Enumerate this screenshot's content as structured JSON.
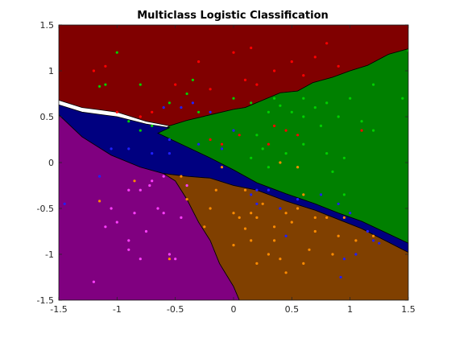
{
  "chart_data": {
    "type": "scatter",
    "title": "Multiclass Logistic Classification",
    "xlabel": "",
    "ylabel": "",
    "xlim": [
      -1.5,
      1.5
    ],
    "ylim": [
      -1.5,
      1.5
    ],
    "xticks": [
      -1.5,
      -1,
      -0.5,
      0,
      0.5,
      1,
      1.5
    ],
    "xtick_labels": [
      "-1.5",
      "-1",
      "-0.5",
      "0",
      "0.5",
      "1",
      "1.5"
    ],
    "yticks": [
      -1.5,
      -1,
      -0.5,
      0,
      0.5,
      1,
      1.5
    ],
    "ytick_labels": [
      "-1.5",
      "-1",
      "-0.5",
      "0",
      "0.5",
      "1",
      "1.5"
    ],
    "grid": false,
    "regions": [
      {
        "color": "#800000",
        "edge": "#000000",
        "polygon": [
          [
            -1.5,
            1.5
          ],
          [
            1.5,
            1.5
          ],
          [
            1.5,
            1.24
          ],
          [
            1.33,
            1.18
          ],
          [
            1.15,
            1.06
          ],
          [
            1.0,
            1.0
          ],
          [
            0.85,
            0.93
          ],
          [
            0.68,
            0.87
          ],
          [
            0.55,
            0.78
          ],
          [
            0.4,
            0.76
          ],
          [
            0.25,
            0.68
          ],
          [
            0.1,
            0.6
          ],
          [
            0.0,
            0.58
          ],
          [
            -0.2,
            0.52
          ],
          [
            -0.4,
            0.46
          ],
          [
            -0.55,
            0.4
          ],
          [
            -0.75,
            0.45
          ],
          [
            -1.0,
            0.55
          ],
          [
            -1.3,
            0.6
          ],
          [
            -1.5,
            0.68
          ]
        ]
      },
      {
        "color": "#008000",
        "edge": "#000000",
        "polygon": [
          [
            1.5,
            1.24
          ],
          [
            1.33,
            1.18
          ],
          [
            1.15,
            1.06
          ],
          [
            1.0,
            1.0
          ],
          [
            0.85,
            0.93
          ],
          [
            0.68,
            0.87
          ],
          [
            0.55,
            0.78
          ],
          [
            0.4,
            0.76
          ],
          [
            0.25,
            0.68
          ],
          [
            0.1,
            0.6
          ],
          [
            0.0,
            0.58
          ],
          [
            -0.2,
            0.52
          ],
          [
            -0.4,
            0.46
          ],
          [
            -0.55,
            0.4
          ],
          [
            -0.65,
            0.32
          ],
          [
            -0.45,
            0.2
          ],
          [
            -0.2,
            0.05
          ],
          [
            0.0,
            -0.08
          ],
          [
            0.2,
            -0.22
          ],
          [
            0.45,
            -0.34
          ],
          [
            0.7,
            -0.45
          ],
          [
            0.9,
            -0.55
          ],
          [
            1.1,
            -0.64
          ],
          [
            1.3,
            -0.76
          ],
          [
            1.5,
            -0.88
          ]
        ]
      },
      {
        "color": "#000080",
        "edge": "#000000",
        "polygon": [
          [
            -1.5,
            0.63
          ],
          [
            -1.3,
            0.55
          ],
          [
            -1.0,
            0.5
          ],
          [
            -0.75,
            0.42
          ],
          [
            -0.55,
            0.38
          ],
          [
            -0.65,
            0.32
          ],
          [
            -0.45,
            0.2
          ],
          [
            -0.2,
            0.05
          ],
          [
            0.0,
            -0.08
          ],
          [
            0.2,
            -0.22
          ],
          [
            0.45,
            -0.34
          ],
          [
            0.7,
            -0.45
          ],
          [
            0.9,
            -0.55
          ],
          [
            1.1,
            -0.64
          ],
          [
            1.3,
            -0.76
          ],
          [
            1.5,
            -0.88
          ],
          [
            1.5,
            -0.98
          ],
          [
            1.3,
            -0.85
          ],
          [
            1.1,
            -0.72
          ],
          [
            0.9,
            -0.62
          ],
          [
            0.7,
            -0.52
          ],
          [
            0.45,
            -0.42
          ],
          [
            0.2,
            -0.3
          ],
          [
            0.0,
            -0.25
          ],
          [
            -0.2,
            -0.17
          ],
          [
            -0.4,
            -0.15
          ],
          [
            -0.6,
            -0.12
          ],
          [
            -0.8,
            -0.05
          ],
          [
            -1.05,
            0.08
          ],
          [
            -1.3,
            0.28
          ],
          [
            -1.5,
            0.52
          ]
        ]
      },
      {
        "color": "#800080",
        "edge": "#000000",
        "polygon": [
          [
            -1.5,
            0.52
          ],
          [
            -1.3,
            0.28
          ],
          [
            -1.05,
            0.08
          ],
          [
            -0.8,
            -0.05
          ],
          [
            -0.6,
            -0.12
          ],
          [
            -0.5,
            -0.2
          ],
          [
            -0.4,
            -0.4
          ],
          [
            -0.3,
            -0.65
          ],
          [
            -0.2,
            -0.85
          ],
          [
            -0.12,
            -1.1
          ],
          [
            0.0,
            -1.35
          ],
          [
            0.05,
            -1.5
          ],
          [
            -1.5,
            -1.5
          ]
        ]
      },
      {
        "color": "#804000",
        "edge": "#000000",
        "polygon": [
          [
            -0.6,
            -0.12
          ],
          [
            -0.4,
            -0.15
          ],
          [
            -0.2,
            -0.17
          ],
          [
            0.0,
            -0.25
          ],
          [
            0.2,
            -0.3
          ],
          [
            0.45,
            -0.42
          ],
          [
            0.7,
            -0.52
          ],
          [
            0.9,
            -0.62
          ],
          [
            1.1,
            -0.72
          ],
          [
            1.3,
            -0.85
          ],
          [
            1.5,
            -0.98
          ],
          [
            1.5,
            -1.5
          ],
          [
            0.05,
            -1.5
          ],
          [
            0.0,
            -1.35
          ],
          [
            -0.12,
            -1.1
          ],
          [
            -0.2,
            -0.85
          ],
          [
            -0.3,
            -0.65
          ],
          [
            -0.4,
            -0.4
          ],
          [
            -0.5,
            -0.2
          ]
        ]
      }
    ],
    "series": [
      {
        "color": "#ff0000",
        "points": [
          [
            -1.2,
            1.0
          ],
          [
            -1.1,
            1.05
          ],
          [
            -0.5,
            0.85
          ],
          [
            -0.3,
            1.1
          ],
          [
            -0.2,
            0.8
          ],
          [
            0.0,
            1.2
          ],
          [
            0.1,
            0.9
          ],
          [
            0.2,
            0.85
          ],
          [
            0.35,
            1.0
          ],
          [
            0.5,
            1.1
          ],
          [
            0.6,
            0.95
          ],
          [
            0.7,
            1.15
          ],
          [
            0.8,
            1.3
          ],
          [
            0.9,
            1.05
          ],
          [
            -1.0,
            0.55
          ],
          [
            -0.8,
            0.5
          ],
          [
            -0.7,
            0.55
          ],
          [
            0.15,
            1.25
          ],
          [
            0.05,
            0.3
          ],
          [
            -0.1,
            0.2
          ],
          [
            0.3,
            0.2
          ],
          [
            0.45,
            0.35
          ],
          [
            0.55,
            0.3
          ],
          [
            1.1,
            0.35
          ],
          [
            -0.2,
            0.25
          ],
          [
            0.35,
            0.4
          ]
        ]
      },
      {
        "color": "#00d000",
        "points": [
          [
            -1.0,
            1.2
          ],
          [
            -1.1,
            0.85
          ],
          [
            -1.15,
            0.83
          ],
          [
            -0.8,
            0.85
          ],
          [
            -0.4,
            0.75
          ],
          [
            -0.35,
            0.9
          ],
          [
            -0.55,
            0.65
          ],
          [
            -0.8,
            0.35
          ],
          [
            -0.7,
            0.4
          ],
          [
            -0.9,
            0.45
          ],
          [
            0.0,
            0.7
          ],
          [
            0.15,
            0.65
          ],
          [
            0.3,
            0.55
          ],
          [
            0.4,
            0.62
          ],
          [
            0.5,
            0.55
          ],
          [
            0.6,
            0.5
          ],
          [
            0.7,
            0.6
          ],
          [
            0.8,
            0.65
          ],
          [
            0.9,
            0.5
          ],
          [
            1.0,
            0.7
          ],
          [
            1.1,
            0.45
          ],
          [
            1.2,
            0.35
          ],
          [
            1.45,
            0.7
          ],
          [
            1.5,
            1.22
          ],
          [
            0.25,
            0.15
          ],
          [
            0.45,
            0.1
          ],
          [
            0.6,
            0.2
          ],
          [
            0.75,
            0.4
          ],
          [
            0.8,
            0.1
          ],
          [
            0.85,
            -0.1
          ],
          [
            0.95,
            0.05
          ],
          [
            0.55,
            -0.05
          ],
          [
            0.2,
            0.3
          ],
          [
            0.3,
            -0.05
          ],
          [
            -0.3,
            0.55
          ],
          [
            0.6,
            0.7
          ],
          [
            1.2,
            0.85
          ],
          [
            0.95,
            -0.35
          ],
          [
            0.15,
            0.05
          ],
          [
            0.35,
            0.7
          ]
        ]
      },
      {
        "color": "#2020ff",
        "points": [
          [
            -1.45,
            -0.45
          ],
          [
            -1.15,
            -0.15
          ],
          [
            -1.05,
            0.15
          ],
          [
            -0.9,
            0.15
          ],
          [
            -0.7,
            0.1
          ],
          [
            -0.55,
            0.1
          ],
          [
            -0.45,
            0.6
          ],
          [
            -0.6,
            0.6
          ],
          [
            -0.35,
            0.65
          ],
          [
            -0.55,
            0.25
          ],
          [
            -0.3,
            0.2
          ],
          [
            -0.1,
            0.15
          ],
          [
            0.0,
            0.35
          ],
          [
            0.15,
            -0.35
          ],
          [
            0.2,
            -0.45
          ],
          [
            0.3,
            -0.3
          ],
          [
            0.4,
            -0.5
          ],
          [
            0.45,
            -0.8
          ],
          [
            0.55,
            -0.4
          ],
          [
            0.75,
            -0.35
          ],
          [
            0.9,
            -0.45
          ],
          [
            0.95,
            -1.05
          ],
          [
            0.92,
            -1.25
          ],
          [
            1.05,
            -1.0
          ],
          [
            1.15,
            -0.75
          ],
          [
            1.2,
            -0.85
          ],
          [
            1.25,
            -0.88
          ],
          [
            0.2,
            -0.3
          ],
          [
            -0.2,
            0.55
          ],
          [
            1.0,
            -0.55
          ]
        ]
      },
      {
        "color": "#ff40ff",
        "points": [
          [
            -1.2,
            -1.3
          ],
          [
            -1.1,
            -0.7
          ],
          [
            -1.0,
            -0.65
          ],
          [
            -0.9,
            -0.85
          ],
          [
            -0.9,
            -0.95
          ],
          [
            -0.85,
            -0.55
          ],
          [
            -0.8,
            -1.05
          ],
          [
            -0.75,
            -0.75
          ],
          [
            -0.8,
            -0.3
          ],
          [
            -0.72,
            -0.25
          ],
          [
            -0.6,
            -0.15
          ],
          [
            -0.55,
            -1.0
          ],
          [
            -0.5,
            -1.05
          ],
          [
            -0.6,
            -0.55
          ],
          [
            -0.45,
            -0.6
          ],
          [
            -0.4,
            -0.25
          ],
          [
            -0.9,
            -0.3
          ],
          [
            -1.05,
            -0.5
          ],
          [
            -0.65,
            -0.5
          ],
          [
            -0.7,
            -0.2
          ]
        ]
      },
      {
        "color": "#ff8c00",
        "points": [
          [
            -1.15,
            -0.42
          ],
          [
            -0.85,
            -0.2
          ],
          [
            -0.55,
            -1.05
          ],
          [
            -0.4,
            -0.4
          ],
          [
            -0.2,
            -0.5
          ],
          [
            -0.15,
            -0.3
          ],
          [
            0.0,
            -0.55
          ],
          [
            0.05,
            -0.6
          ],
          [
            0.1,
            -0.72
          ],
          [
            0.15,
            -0.85
          ],
          [
            0.2,
            -0.6
          ],
          [
            0.25,
            -0.45
          ],
          [
            0.35,
            -0.7
          ],
          [
            0.4,
            -1.05
          ],
          [
            0.45,
            -1.2
          ],
          [
            0.5,
            -0.65
          ],
          [
            0.55,
            -0.5
          ],
          [
            0.6,
            -1.1
          ],
          [
            0.65,
            -0.95
          ],
          [
            0.7,
            -0.75
          ],
          [
            0.8,
            -0.6
          ],
          [
            0.9,
            -0.8
          ],
          [
            1.05,
            -0.85
          ],
          [
            0.3,
            -1.0
          ],
          [
            0.45,
            -0.55
          ],
          [
            -0.25,
            -0.7
          ],
          [
            0.2,
            -1.1
          ],
          [
            0.0,
            -0.9
          ],
          [
            0.6,
            -0.35
          ],
          [
            0.85,
            -1.0
          ],
          [
            1.2,
            -0.8
          ],
          [
            -0.45,
            -0.15
          ],
          [
            -0.1,
            -0.05
          ],
          [
            0.55,
            -0.05
          ],
          [
            0.4,
            0.0
          ],
          [
            0.1,
            -0.3
          ],
          [
            0.7,
            -0.6
          ],
          [
            0.35,
            -0.85
          ],
          [
            0.95,
            -0.6
          ],
          [
            0.15,
            -0.55
          ]
        ]
      }
    ]
  }
}
